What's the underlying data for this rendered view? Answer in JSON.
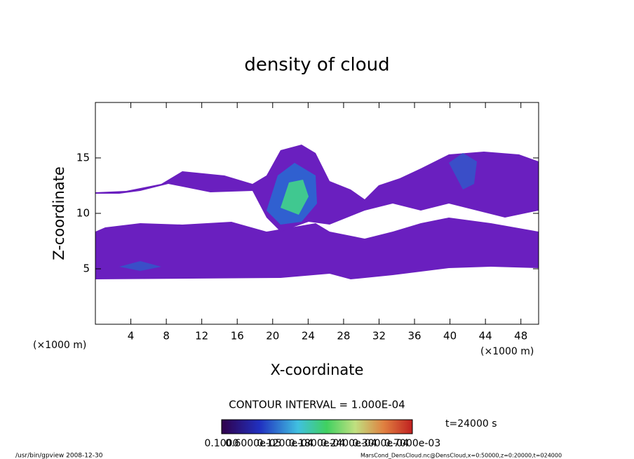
{
  "chart_data": {
    "type": "contour",
    "title": "density of cloud",
    "x_label": "X-coordinate",
    "y_label": "Z-coordinate",
    "x_unit": "(×1000 m)",
    "y_unit": "(×1000 m)",
    "xlim": [
      0,
      50
    ],
    "ylim": [
      0,
      20
    ],
    "xticks": [
      4,
      8,
      12,
      16,
      20,
      24,
      28,
      32,
      36,
      40,
      44,
      48
    ],
    "yticks": [
      5,
      10,
      15
    ],
    "contour_interval": "CONTOUR INTERVAL = 1.000E-04",
    "time_label": "t=24000 s",
    "colorbar_labels": [
      "0.1000",
      "0.6000e-05",
      "0.1200e-04",
      "0.1800e-04",
      "0.2400e-04",
      "0.3000e-04",
      "0.7000e-03"
    ],
    "footer_left": "/usr/bin/gpview  2008-12-30",
    "footer_right": "MarsCond_DensCloud.nc@DensCloud,x=0:50000,z=0:20000,t=024000"
  }
}
